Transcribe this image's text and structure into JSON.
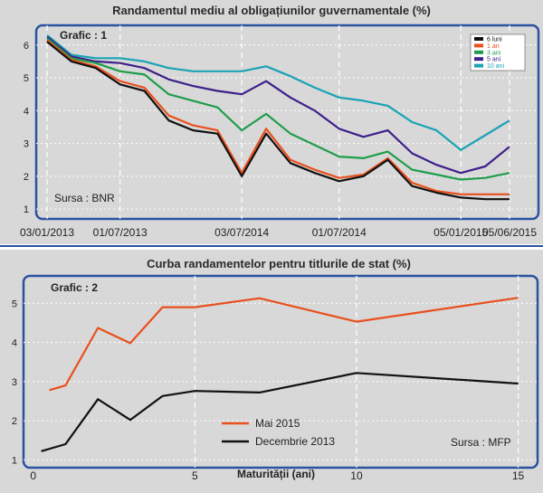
{
  "chart_data": [
    {
      "type": "line",
      "title": "Randamentul mediu al obligațiunilor guvernamentale (%)",
      "label": "Grafic : 1",
      "source": "Sursa : BNR",
      "xlabel": "",
      "ylabel": "",
      "ylim": [
        0.7,
        6.6
      ],
      "yticks": [
        1,
        2,
        3,
        4,
        5,
        6
      ],
      "x_tick_labels": [
        "03/01/2013",
        "01/07/2013",
        "03/07/2014",
        "01/07/2014",
        "05/01/2015",
        "05/06/2015"
      ],
      "x": [
        "03/01/2013",
        "",
        "",
        "01/07/2013",
        "",
        "",
        "",
        "",
        "03/07/2014",
        "",
        "",
        "",
        "01/07/2014",
        "",
        "",
        "",
        "",
        "05/01/2015",
        "",
        "05/06/2015"
      ],
      "series": [
        {
          "name": "6 luni",
          "color": "#111111",
          "values": [
            6.1,
            5.5,
            5.3,
            4.8,
            4.6,
            3.7,
            3.4,
            3.3,
            2.0,
            3.3,
            2.4,
            2.1,
            1.85,
            2.0,
            2.5,
            1.7,
            1.5,
            1.35,
            1.3,
            1.3
          ]
        },
        {
          "name": "1 an",
          "color": "#e8501e",
          "values": [
            6.15,
            5.55,
            5.35,
            4.9,
            4.7,
            3.85,
            3.55,
            3.4,
            2.1,
            3.45,
            2.5,
            2.2,
            1.95,
            2.05,
            2.55,
            1.8,
            1.55,
            1.45,
            1.45,
            1.45
          ]
        },
        {
          "name": "3 ani",
          "color": "#1f9d4a",
          "values": [
            6.2,
            5.6,
            5.45,
            5.2,
            5.1,
            4.5,
            4.3,
            4.1,
            3.4,
            3.9,
            3.3,
            2.95,
            2.6,
            2.55,
            2.75,
            2.2,
            2.05,
            1.9,
            1.95,
            2.1
          ]
        },
        {
          "name": "5 ani",
          "color": "#3d1f8a",
          "values": [
            6.25,
            5.65,
            5.5,
            5.45,
            5.3,
            4.95,
            4.75,
            4.6,
            4.5,
            4.9,
            4.4,
            4.0,
            3.45,
            3.2,
            3.4,
            2.7,
            2.35,
            2.1,
            2.3,
            2.9
          ]
        },
        {
          "name": "10 ani",
          "color": "#1aa3b5",
          "values": [
            6.3,
            5.7,
            5.6,
            5.6,
            5.5,
            5.3,
            5.2,
            5.2,
            5.2,
            5.35,
            5.05,
            4.7,
            4.4,
            4.3,
            4.15,
            3.65,
            3.4,
            2.8,
            3.25,
            3.7
          ]
        }
      ]
    },
    {
      "type": "line",
      "title": "Curba randamentelor pentru titlurile de stat (%)",
      "label": "Grafic : 2",
      "source": "Sursa : MFP",
      "xlabel": "Maturității (ani)",
      "ylabel": "",
      "xlim": [
        -0.3,
        15.6
      ],
      "ylim": [
        0.8,
        5.7
      ],
      "xticks": [
        0,
        5,
        10,
        15
      ],
      "yticks": [
        1,
        2,
        3,
        4,
        5
      ],
      "series": [
        {
          "name": "Mai 2015",
          "color": "#e8501e",
          "x": [
            0.5,
            1,
            2,
            3,
            4,
            5,
            7,
            10,
            15
          ],
          "values": [
            2.78,
            2.9,
            4.37,
            3.98,
            4.9,
            4.9,
            5.13,
            4.53,
            5.14
          ]
        },
        {
          "name": "Decembrie 2013",
          "color": "#111111",
          "x": [
            0.25,
            1,
            2,
            3,
            4,
            5,
            7,
            10,
            15
          ],
          "values": [
            1.22,
            1.4,
            2.55,
            2.02,
            2.63,
            2.76,
            2.72,
            3.22,
            2.95
          ]
        }
      ]
    }
  ]
}
